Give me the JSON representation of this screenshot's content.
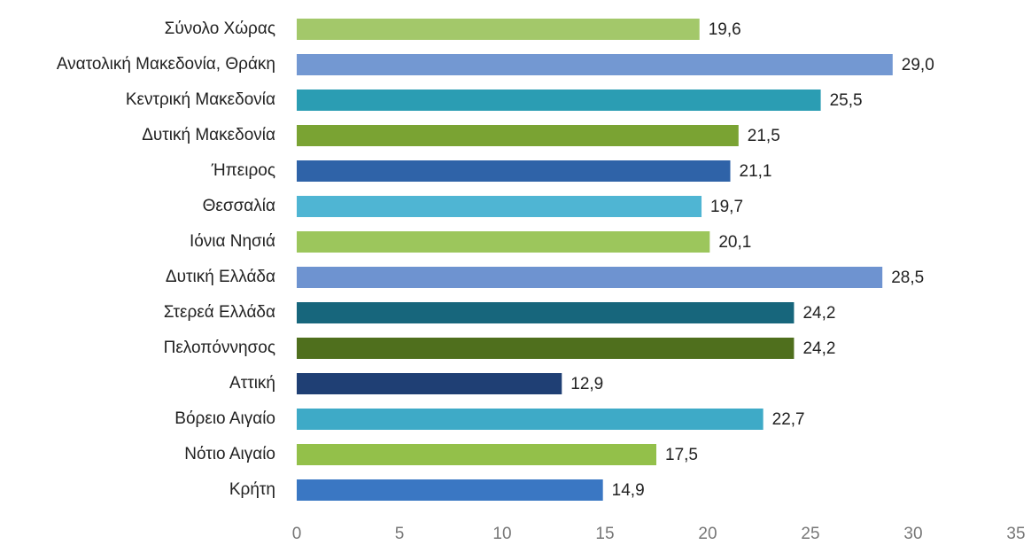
{
  "chart_data": {
    "type": "bar",
    "orientation": "horizontal",
    "categories": [
      "Σύνολο Χώρας",
      "Ανατολική Μακεδονία, Θράκη",
      "Κεντρική Μακεδονία",
      "Δυτική Μακεδονία",
      "Ήπειρος",
      "Θεσσαλία",
      "Ιόνια Νησιά",
      "Δυτική Ελλάδα",
      "Στερεά Ελλάδα",
      "Πελοπόννησος",
      "Αττική",
      "Βόρειο Αιγαίο",
      "Νότιο Αιγαίο",
      "Κρήτη"
    ],
    "values": [
      19.6,
      29.0,
      25.5,
      21.5,
      21.1,
      19.7,
      20.1,
      28.5,
      24.2,
      24.2,
      12.9,
      22.7,
      17.5,
      14.9
    ],
    "value_labels": [
      "19,6",
      "29,0",
      "25,5",
      "21,5",
      "21,1",
      "19,7",
      "20,1",
      "28,5",
      "24,2",
      "24,2",
      "12,9",
      "22,7",
      "17,5",
      "14,9"
    ],
    "colors": [
      "#a3c86a",
      "#7398d2",
      "#2b9db3",
      "#7aa333",
      "#2f63a8",
      "#4fb5d3",
      "#9cc65c",
      "#6e93d0",
      "#17667c",
      "#4f6f1d",
      "#1f3f74",
      "#3eaac7",
      "#93c04a",
      "#3a77c3"
    ],
    "xlim": [
      0,
      35
    ],
    "xticks": [
      0,
      5,
      10,
      15,
      20,
      25,
      30,
      35
    ],
    "grid": false
  }
}
